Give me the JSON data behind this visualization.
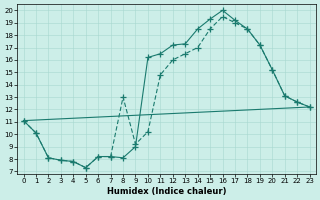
{
  "xlabel": "Humidex (Indice chaleur)",
  "bg_color": "#cceee8",
  "line_color": "#1a7a6e",
  "xlim": [
    -0.5,
    23.5
  ],
  "ylim": [
    6.8,
    20.5
  ],
  "xticks": [
    0,
    1,
    2,
    3,
    4,
    5,
    6,
    7,
    8,
    9,
    10,
    11,
    12,
    13,
    14,
    15,
    16,
    17,
    18,
    19,
    20,
    21,
    22,
    23
  ],
  "yticks": [
    7,
    8,
    9,
    10,
    11,
    12,
    13,
    14,
    15,
    16,
    17,
    18,
    19,
    20
  ],
  "line1_x": [
    0,
    1,
    2,
    3,
    4,
    5,
    6,
    7,
    8,
    9,
    10,
    11,
    12,
    13,
    14,
    15,
    16,
    17,
    18,
    19,
    20,
    21,
    22,
    23
  ],
  "line1_y": [
    11.1,
    10.1,
    8.1,
    7.9,
    7.8,
    7.3,
    8.2,
    8.2,
    8.1,
    9.0,
    16.2,
    16.5,
    17.2,
    17.3,
    18.5,
    19.3,
    20.0,
    19.2,
    18.5,
    17.2,
    15.2,
    13.1,
    12.6,
    12.2
  ],
  "line2_x": [
    0,
    1,
    2,
    3,
    4,
    5,
    6,
    7,
    8,
    9,
    10,
    11,
    12,
    13,
    14,
    15,
    16,
    17,
    18,
    19,
    20,
    21,
    22,
    23
  ],
  "line2_y": [
    11.1,
    10.1,
    8.1,
    7.9,
    7.8,
    7.3,
    8.2,
    8.2,
    13.0,
    9.2,
    10.2,
    14.8,
    16.0,
    16.5,
    17.0,
    18.5,
    19.5,
    19.0,
    18.5,
    17.2,
    15.2,
    13.1,
    12.6,
    12.2
  ],
  "line3_x": [
    0,
    23
  ],
  "line3_y": [
    11.1,
    12.2
  ]
}
